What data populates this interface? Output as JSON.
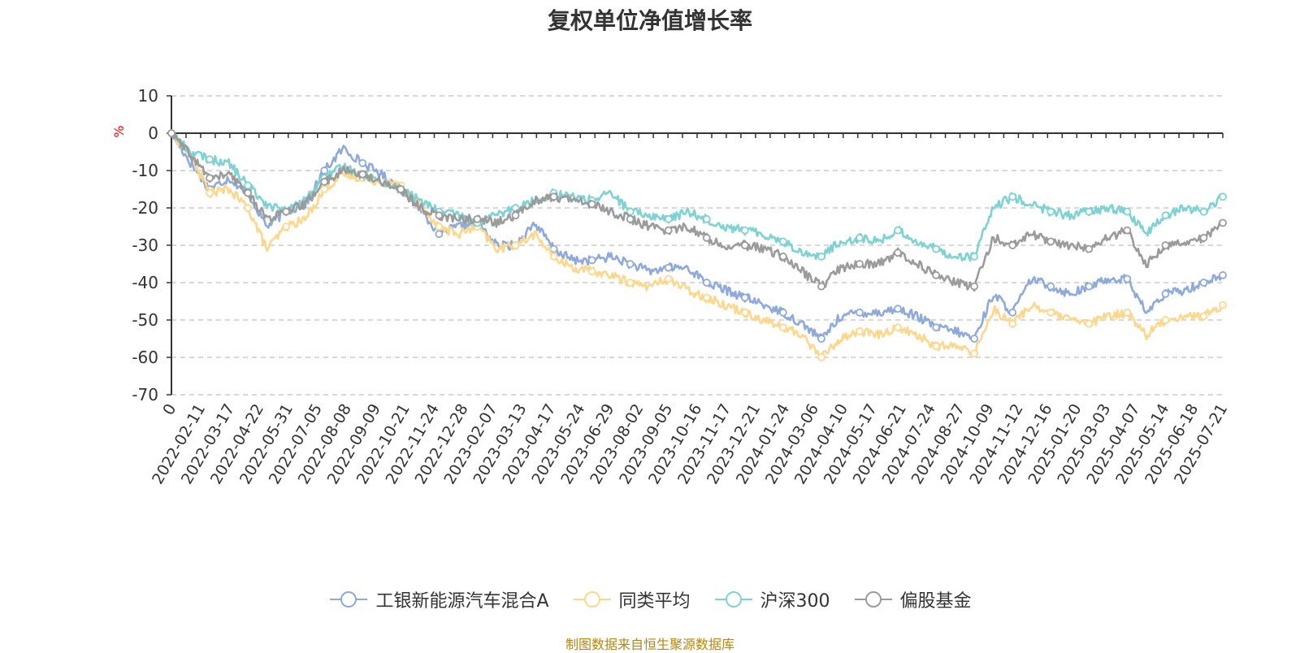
{
  "chart_data": {
    "type": "line",
    "title": "复权单位净值增长率",
    "ylabel": "%",
    "ylim": [
      -70,
      10
    ],
    "yticks": [
      10,
      0,
      -10,
      -20,
      -30,
      -40,
      -50,
      -60,
      -70
    ],
    "x_tick_labels": [
      "0",
      "2022-02-11",
      "2022-03-17",
      "2022-04-22",
      "2022-05-31",
      "2022-07-05",
      "2022-08-08",
      "2022-09-09",
      "2022-10-21",
      "2022-11-24",
      "2022-12-28",
      "2023-02-07",
      "2023-03-13",
      "2023-04-17",
      "2023-05-24",
      "2023-06-29",
      "2023-08-02",
      "2023-09-05",
      "2023-10-16",
      "2023-11-17",
      "2023-12-21",
      "2024-01-24",
      "2024-03-06",
      "2024-04-10",
      "2024-05-17",
      "2024-06-21",
      "2024-07-24",
      "2024-08-27",
      "2024-10-09",
      "2024-11-12",
      "2024-12-16",
      "2025-01-20",
      "2025-03-03",
      "2025-04-07",
      "2025-05-14",
      "2025-06-18",
      "2025-07-21"
    ],
    "series": [
      {
        "name": "工银新能源汽车混合A",
        "color": "#8eaadb",
        "values": [
          0,
          -8,
          -15,
          -12,
          -16,
          -25,
          -21,
          -19,
          -10,
          -4,
          -8,
          -11,
          -15,
          -20,
          -27,
          -25,
          -24,
          -30,
          -30,
          -24,
          -31,
          -34,
          -34,
          -33,
          -35,
          -37,
          -36,
          -36,
          -40,
          -42,
          -44,
          -46,
          -48,
          -51,
          -55,
          -49,
          -48,
          -48,
          -47,
          -49,
          -52,
          -53,
          -55,
          -43,
          -48,
          -39,
          -41,
          -43,
          -41,
          -39,
          -39,
          -48,
          -43,
          -42,
          -40,
          -38
        ]
      },
      {
        "name": "同类平均",
        "color": "#ffd78c",
        "values": [
          0,
          -6,
          -16,
          -15,
          -20,
          -31,
          -25,
          -23,
          -15,
          -11,
          -12,
          -13,
          -14,
          -19,
          -25,
          -27,
          -25,
          -31,
          -30,
          -27,
          -33,
          -36,
          -37,
          -38,
          -40,
          -41,
          -39,
          -42,
          -44,
          -46,
          -48,
          -50,
          -52,
          -54,
          -60,
          -55,
          -53,
          -54,
          -52,
          -54,
          -57,
          -57,
          -59,
          -47,
          -51,
          -46,
          -48,
          -50,
          -51,
          -49,
          -48,
          -54,
          -50,
          -49,
          -49,
          -46
        ]
      },
      {
        "name": "沪深300",
        "color": "#7dd3d4",
        "values": [
          0,
          -5,
          -7,
          -8,
          -14,
          -19,
          -21,
          -18,
          -12,
          -9,
          -11,
          -13,
          -15,
          -18,
          -21,
          -22,
          -24,
          -22,
          -20,
          -18,
          -16,
          -17,
          -18,
          -16,
          -21,
          -22,
          -23,
          -21,
          -23,
          -25,
          -26,
          -27,
          -29,
          -32,
          -33,
          -29,
          -28,
          -29,
          -26,
          -29,
          -31,
          -33,
          -33,
          -20,
          -17,
          -19,
          -21,
          -22,
          -21,
          -20,
          -21,
          -27,
          -22,
          -20,
          -21,
          -17
        ]
      },
      {
        "name": "偏股基金",
        "color": "#9b9b9b",
        "values": [
          0,
          -6,
          -12,
          -11,
          -16,
          -23,
          -21,
          -19,
          -13,
          -10,
          -11,
          -13,
          -15,
          -20,
          -22,
          -23,
          -23,
          -24,
          -22,
          -18,
          -17,
          -18,
          -19,
          -21,
          -23,
          -25,
          -26,
          -25,
          -28,
          -30,
          -30,
          -31,
          -33,
          -37,
          -41,
          -36,
          -35,
          -35,
          -32,
          -35,
          -38,
          -40,
          -41,
          -28,
          -30,
          -27,
          -29,
          -30,
          -31,
          -28,
          -26,
          -35,
          -30,
          -29,
          -28,
          -24
        ]
      }
    ]
  },
  "legend": {
    "items": [
      "工银新能源汽车混合A",
      "同类平均",
      "沪深300",
      "偏股基金"
    ]
  },
  "source_note": "制图数据来自恒生聚源数据库"
}
